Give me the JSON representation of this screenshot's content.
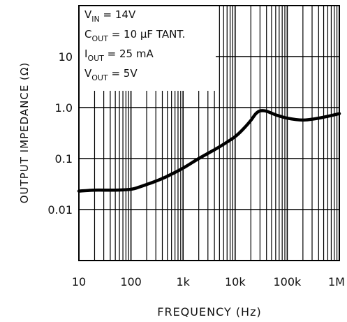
{
  "chart_data": {
    "type": "line",
    "title": "",
    "xlabel": "FREQUENCY (Hz)",
    "ylabel": "OUTPUT IMPEDANCE (Ω)",
    "x_scale": "log",
    "y_scale": "log",
    "xlim": [
      10,
      1000000
    ],
    "ylim": [
      0.001,
      100
    ],
    "x_ticks": [
      10,
      100,
      1000,
      10000,
      100000,
      1000000
    ],
    "x_tick_labels": [
      "10",
      "100",
      "1k",
      "10k",
      "100k",
      "1M"
    ],
    "y_ticks": [
      0.01,
      0.1,
      1.0,
      10
    ],
    "y_tick_labels": [
      "0.01",
      "0.1",
      "1.0",
      "10"
    ],
    "grid": true,
    "conditions": [
      {
        "base": "V",
        "sub": "IN",
        "rest": " = 14V"
      },
      {
        "base": "C",
        "sub": "OUT",
        "rest": " = 10 μF TANT."
      },
      {
        "base": "I",
        "sub": "OUT",
        "rest": " = 25 mA"
      },
      {
        "base": "V",
        "sub": "OUT",
        "rest": " = 5V"
      }
    ],
    "series": [
      {
        "x": [
          10,
          20,
          50,
          100,
          150,
          200,
          300,
          500,
          1000,
          2000,
          5000,
          10000,
          15000,
          20000,
          25000,
          30000,
          40000,
          60000,
          100000,
          200000,
          400000,
          1000000
        ],
        "y": [
          0.023,
          0.024,
          0.024,
          0.025,
          0.028,
          0.031,
          0.036,
          0.045,
          0.065,
          0.1,
          0.17,
          0.27,
          0.4,
          0.56,
          0.76,
          0.86,
          0.85,
          0.72,
          0.62,
          0.57,
          0.62,
          0.76
        ]
      }
    ],
    "colors": {
      "line": "#000000",
      "grid": "#000000",
      "background": "#ffffff"
    }
  }
}
